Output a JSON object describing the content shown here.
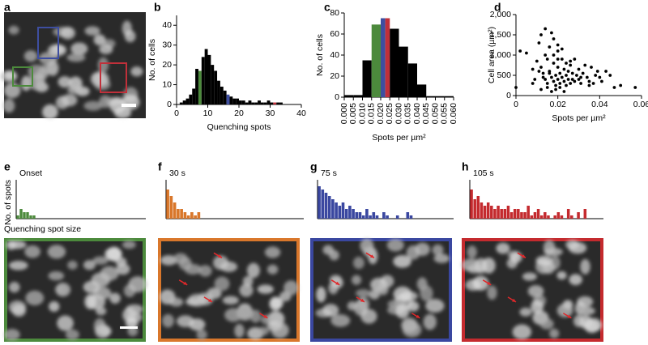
{
  "image_panel": {
    "panel": "a"
  },
  "chart_data": [
    {
      "type": "histogram",
      "panel": "b",
      "ylabel": "No. of cells",
      "xlabel": "Quenching spots",
      "bins": [
        0,
        1,
        2,
        3,
        4,
        5,
        6,
        7,
        8,
        9,
        10,
        11,
        12,
        13,
        14,
        15,
        16,
        17,
        18,
        19,
        20,
        21,
        22,
        23,
        24,
        25,
        26,
        27,
        28,
        29,
        30,
        31,
        32,
        33,
        34,
        35,
        36,
        37,
        38,
        39,
        40
      ],
      "values": [
        0,
        1,
        2,
        3,
        5,
        8,
        18,
        17,
        24,
        28,
        25,
        20,
        17,
        12,
        9,
        7,
        5,
        4,
        3,
        3,
        2,
        2,
        1,
        2,
        1,
        1,
        2,
        1,
        1,
        2,
        1,
        1,
        1,
        1,
        0,
        0,
        0,
        0,
        0,
        0
      ],
      "colors": [
        "#000",
        "#000",
        "#000",
        "#000",
        "#000",
        "#000",
        "#000",
        "#4c8a3c",
        "#000",
        "#000",
        "#000",
        "#000",
        "#000",
        "#000",
        "#000",
        "#000",
        "#3e4ea0",
        "#000",
        "#000",
        "#000",
        "#000",
        "#000",
        "#000",
        "#000",
        "#000",
        "#000",
        "#000",
        "#000",
        "#000",
        "#000",
        "#000",
        "#c0303a",
        "#000",
        "#000",
        "#000",
        "#000",
        "#000",
        "#000",
        "#000",
        "#000"
      ],
      "xlim": [
        0,
        40
      ],
      "xticks": [
        0,
        10,
        20,
        30,
        40
      ],
      "ylim": [
        0,
        45
      ],
      "yticks": [
        0,
        10,
        20,
        30,
        40
      ]
    },
    {
      "type": "histogram",
      "panel": "c",
      "ylabel": "No. of cells",
      "xlabel": "Spots per µm²",
      "bins": [
        0,
        0.005,
        0.01,
        0.015,
        0.02,
        0.025,
        0.03,
        0.035,
        0.04,
        0.045,
        0.05,
        0.055,
        0.06
      ],
      "values": [
        2,
        2,
        35,
        69,
        75,
        65,
        48,
        32,
        12,
        1,
        1,
        1
      ],
      "colors": [
        "#000",
        "#000",
        "#000",
        "#4c8a3c",
        [
          "#3e4ea0",
          "#c0303a"
        ],
        "#000",
        "#000",
        "#000",
        "#000",
        "#000",
        "#000",
        "#000"
      ],
      "xlim": [
        0,
        0.06
      ],
      "xticks": [
        {
          "value": 0,
          "label": "0.000"
        },
        {
          "value": 0.005,
          "label": "0.005"
        },
        {
          "value": 0.01,
          "label": "0.010"
        },
        {
          "value": 0.015,
          "label": "0.015"
        },
        {
          "value": 0.02,
          "label": "0.020"
        },
        {
          "value": 0.025,
          "label": "0.025"
        },
        {
          "value": 0.03,
          "label": "0.030"
        },
        {
          "value": 0.035,
          "label": "0.035"
        },
        {
          "value": 0.04,
          "label": "0.040"
        },
        {
          "value": 0.045,
          "label": "0.045"
        },
        {
          "value": 0.05,
          "label": "0.050"
        },
        {
          "value": 0.055,
          "label": "0.055"
        },
        {
          "value": 0.06,
          "label": "0.060"
        }
      ],
      "ylim": [
        0,
        80
      ],
      "yticks": [
        0,
        20,
        40,
        60,
        80
      ]
    },
    {
      "type": "scatter",
      "panel": "d",
      "ylabel": "Cell area (µm²)",
      "xlabel": "Spots per µm²",
      "color": "#000",
      "x": [
        0,
        0.002,
        0.005,
        0.008,
        0.01,
        0.011,
        0.012,
        0.012,
        0.013,
        0.014,
        0.014,
        0.015,
        0.015,
        0.016,
        0.016,
        0.017,
        0.017,
        0.018,
        0.018,
        0.018,
        0.019,
        0.019,
        0.02,
        0.02,
        0.02,
        0.021,
        0.021,
        0.022,
        0.022,
        0.023,
        0.023,
        0.024,
        0.024,
        0.025,
        0.025,
        0.026,
        0.026,
        0.027,
        0.028,
        0.028,
        0.029,
        0.03,
        0.03,
        0.031,
        0.032,
        0.033,
        0.034,
        0.035,
        0.036,
        0.037,
        0.038,
        0.04,
        0.041,
        0.043,
        0.047,
        0.05,
        0.057,
        0.012,
        0.015,
        0.017,
        0.019,
        0.021,
        0.023,
        0.014,
        0.018,
        0.022,
        0.026,
        0.009,
        0.011,
        0.013,
        0.016,
        0.02,
        0.024,
        0.027,
        0.031,
        0.035,
        0.039,
        0.045,
        0.008,
        0.02
      ],
      "y": [
        200,
        1100,
        1050,
        650,
        850,
        1300,
        1500,
        700,
        550,
        1650,
        400,
        900,
        300,
        1200,
        600,
        1550,
        450,
        800,
        350,
        1000,
        500,
        250,
        700,
        400,
        1250,
        550,
        300,
        900,
        450,
        650,
        350,
        800,
        500,
        600,
        400,
        750,
        300,
        550,
        900,
        350,
        500,
        650,
        400,
        300,
        550,
        750,
        450,
        350,
        700,
        300,
        500,
        450,
        350,
        600,
        200,
        250,
        200,
        150,
        200,
        100,
        150,
        200,
        100,
        1000,
        1400,
        1150,
        850,
        400,
        600,
        450,
        550,
        900,
        250,
        400,
        450,
        250,
        600,
        500,
        300,
        1100
      ],
      "xlim": [
        0,
        0.06
      ],
      "xticks": [
        0,
        0.02,
        0.04,
        0.06
      ],
      "ylim": [
        0,
        2000
      ],
      "yticks": [
        0,
        500,
        {
          "value": 1000,
          "label": "1,000"
        },
        {
          "value": 1500,
          "label": "1,500"
        },
        {
          "value": 2000,
          "label": "2,000"
        }
      ]
    },
    {
      "type": "bar",
      "panel": "e",
      "title": "Onset",
      "ylabel": "No. of spots",
      "xlabel": "Quenching spot size",
      "color": "#4c8a3c",
      "ylim": [
        0,
        12
      ],
      "values": [
        1,
        3,
        2,
        2,
        1,
        1,
        0,
        0,
        0,
        0,
        0,
        0,
        0,
        0,
        0,
        0,
        0,
        0,
        0,
        0,
        0,
        0,
        0,
        0,
        0,
        0,
        0,
        0,
        0,
        0,
        0,
        0,
        0,
        0,
        0,
        0,
        0,
        0,
        0,
        0
      ]
    },
    {
      "type": "bar",
      "panel": "f",
      "title": "30 s",
      "color": "#d9772b",
      "ylim": [
        0,
        12
      ],
      "values": [
        9,
        7,
        5,
        3,
        3,
        2,
        1,
        2,
        1,
        2,
        0,
        0,
        0,
        0,
        0,
        0,
        0,
        0,
        0,
        0,
        0,
        0,
        0,
        0,
        0,
        0,
        0,
        0,
        0,
        0,
        0,
        0,
        0,
        0,
        0,
        0,
        0,
        0,
        0,
        0
      ]
    },
    {
      "type": "bar",
      "panel": "g",
      "title": "75 s",
      "color": "#3a47a0",
      "ylim": [
        0,
        12
      ],
      "values": [
        10,
        9,
        8,
        7,
        6,
        5,
        4,
        5,
        3,
        4,
        3,
        2,
        2,
        1,
        3,
        1,
        2,
        1,
        0,
        2,
        1,
        0,
        0,
        1,
        0,
        0,
        2,
        1,
        0,
        0,
        0,
        0,
        0,
        0,
        0,
        0,
        0,
        0,
        0,
        0
      ]
    },
    {
      "type": "bar",
      "panel": "h",
      "title": "105 s",
      "color": "#c42a2e",
      "ylim": [
        0,
        12
      ],
      "values": [
        9,
        6,
        7,
        5,
        4,
        5,
        4,
        3,
        4,
        3,
        3,
        4,
        2,
        3,
        3,
        2,
        2,
        4,
        1,
        2,
        3,
        1,
        2,
        1,
        0,
        1,
        2,
        1,
        0,
        3,
        1,
        0,
        2,
        0,
        3,
        0,
        0,
        0,
        0,
        0
      ]
    }
  ]
}
